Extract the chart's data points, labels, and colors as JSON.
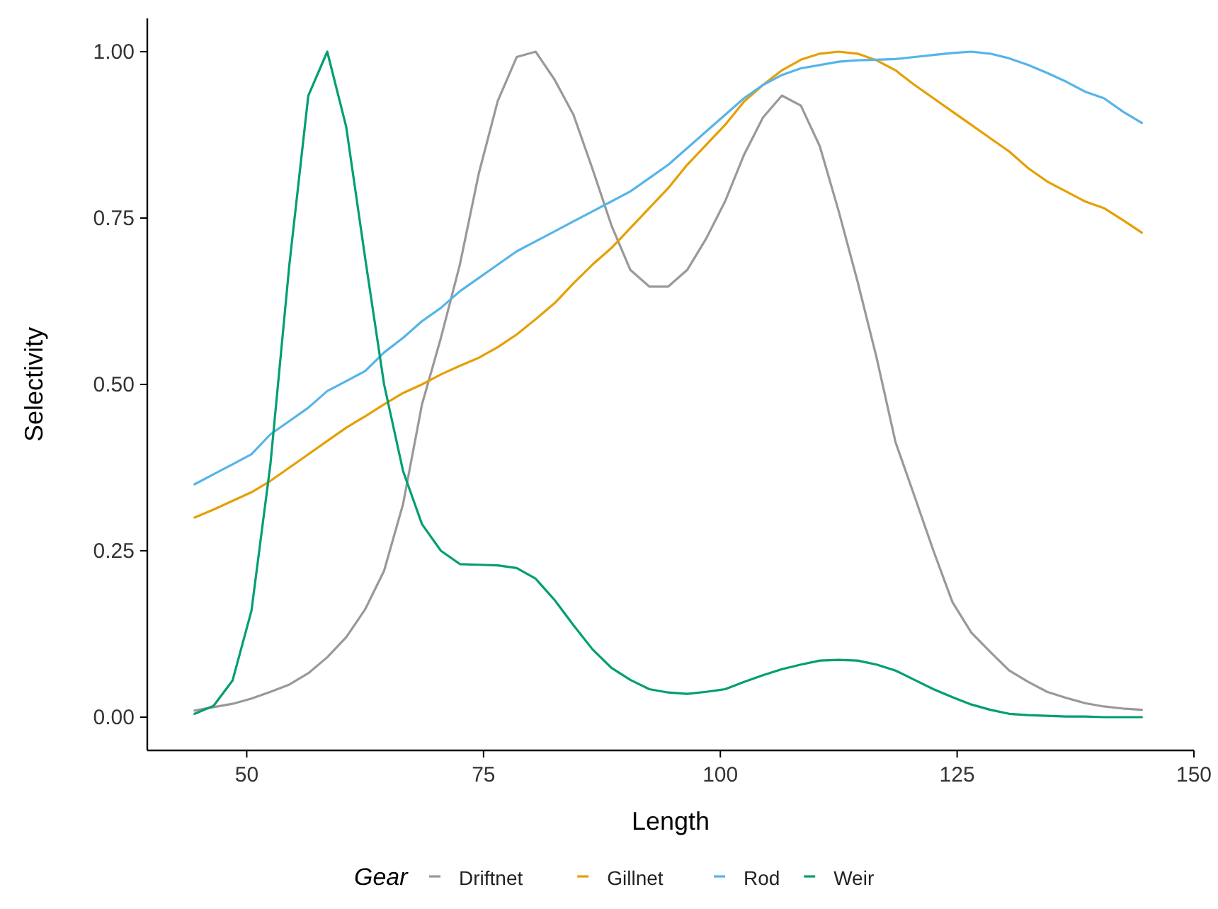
{
  "chart_data": {
    "type": "line",
    "xlabel": "Length",
    "ylabel": "Selectivity",
    "legend_title": "Gear",
    "legend": "bottom",
    "grid": false,
    "x": [
      44.5,
      46.5,
      48.5,
      50.5,
      52.5,
      54.5,
      56.5,
      58.5,
      60.5,
      62.5,
      64.5,
      66.5,
      68.5,
      70.5,
      72.5,
      74.5,
      76.5,
      78.5,
      80.5,
      82.5,
      84.5,
      86.5,
      88.5,
      90.5,
      92.5,
      94.5,
      96.5,
      98.5,
      100.5,
      102.5,
      104.5,
      106.5,
      108.5,
      110.5,
      112.5,
      114.5,
      116.5,
      118.5,
      120.5,
      122.5,
      124.5,
      126.5,
      128.5,
      130.5,
      132.5,
      134.5,
      136.5,
      138.5,
      140.5,
      142.5,
      144.5
    ],
    "xlim": [
      39.5,
      150
    ],
    "xticks": [
      50,
      75,
      100,
      125,
      150
    ],
    "ylim": [
      -0.05,
      1.05
    ],
    "yticks": [
      {
        "value": 0,
        "label": "0.00"
      },
      {
        "value": 0.25,
        "label": "0.25"
      },
      {
        "value": 0.5,
        "label": "0.50"
      },
      {
        "value": 0.75,
        "label": "0.75"
      },
      {
        "value": 1,
        "label": "1.00"
      }
    ],
    "series": [
      {
        "name": "Driftnet",
        "color": "#999999",
        "values": [
          0.01,
          0.015,
          0.02,
          0.028,
          0.038,
          0.049,
          0.066,
          0.09,
          0.12,
          0.162,
          0.22,
          0.32,
          0.47,
          0.57,
          0.68,
          0.817,
          0.926,
          0.992,
          1.0,
          0.958,
          0.905,
          0.824,
          0.739,
          0.672,
          0.647,
          0.647,
          0.672,
          0.719,
          0.775,
          0.845,
          0.901,
          0.934,
          0.919,
          0.858,
          0.76,
          0.654,
          0.54,
          0.413,
          0.332,
          0.25,
          0.173,
          0.127,
          0.098,
          0.07,
          0.053,
          0.038,
          0.029,
          0.021,
          0.016,
          0.013,
          0.011
        ]
      },
      {
        "name": "Gillnet",
        "color": "#e69f00",
        "values": [
          0.3,
          0.312,
          0.325,
          0.338,
          0.355,
          0.375,
          0.395,
          0.415,
          0.435,
          0.452,
          0.47,
          0.487,
          0.5,
          0.515,
          0.528,
          0.54,
          0.556,
          0.575,
          0.598,
          0.622,
          0.652,
          0.68,
          0.705,
          0.735,
          0.765,
          0.795,
          0.83,
          0.86,
          0.89,
          0.925,
          0.95,
          0.972,
          0.988,
          0.997,
          1.0,
          0.997,
          0.987,
          0.972,
          0.95,
          0.93,
          0.91,
          0.89,
          0.87,
          0.85,
          0.825,
          0.805,
          0.79,
          0.775,
          0.765,
          0.747,
          0.728
        ]
      },
      {
        "name": "Rod",
        "color": "#56b4e9",
        "values": [
          0.35,
          0.365,
          0.38,
          0.395,
          0.425,
          0.445,
          0.465,
          0.49,
          0.505,
          0.52,
          0.548,
          0.57,
          0.595,
          0.615,
          0.64,
          0.66,
          0.68,
          0.7,
          0.715,
          0.73,
          0.745,
          0.76,
          0.775,
          0.79,
          0.81,
          0.83,
          0.855,
          0.88,
          0.905,
          0.93,
          0.95,
          0.965,
          0.975,
          0.98,
          0.985,
          0.987,
          0.988,
          0.989,
          0.992,
          0.995,
          0.998,
          1.0,
          0.997,
          0.99,
          0.98,
          0.968,
          0.955,
          0.94,
          0.93,
          0.91,
          0.893
        ]
      },
      {
        "name": "Weir",
        "color": "#009e73",
        "values": [
          0.005,
          0.017,
          0.055,
          0.16,
          0.38,
          0.68,
          0.934,
          1.0,
          0.887,
          0.69,
          0.5,
          0.37,
          0.29,
          0.25,
          0.23,
          0.229,
          0.228,
          0.224,
          0.208,
          0.176,
          0.138,
          0.102,
          0.074,
          0.056,
          0.042,
          0.037,
          0.035,
          0.038,
          0.042,
          0.053,
          0.063,
          0.072,
          0.079,
          0.085,
          0.086,
          0.085,
          0.079,
          0.07,
          0.056,
          0.042,
          0.03,
          0.019,
          0.011,
          0.005,
          0.003,
          0.002,
          0.001,
          0.001,
          0,
          0,
          0
        ]
      }
    ]
  }
}
